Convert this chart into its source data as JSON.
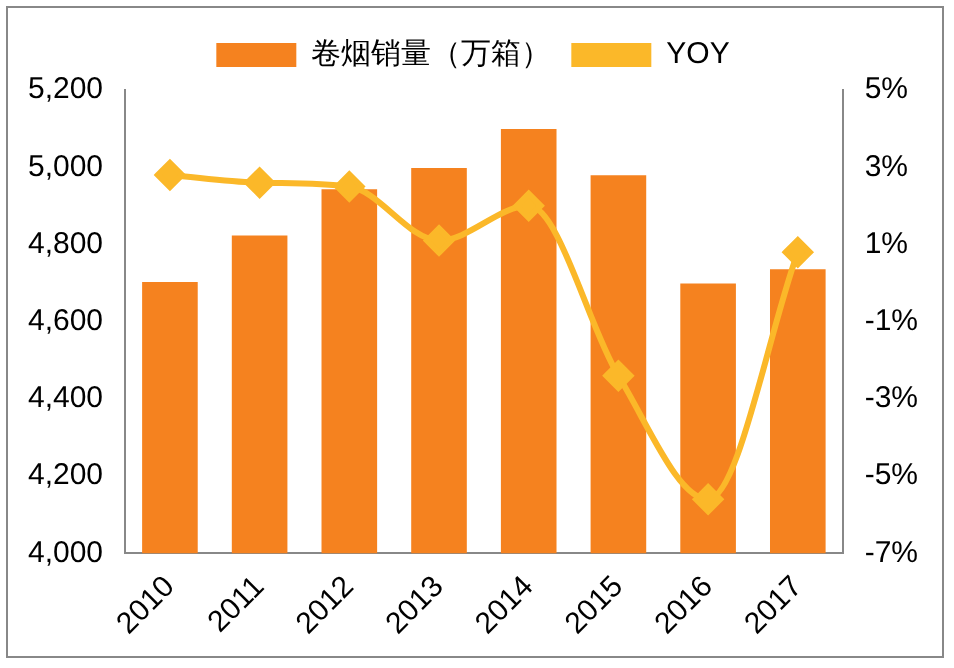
{
  "chart_data": {
    "type": "bar",
    "categories": [
      "2010",
      "2011",
      "2012",
      "2013",
      "2014",
      "2015",
      "2016",
      "2017"
    ],
    "series": [
      {
        "name": "卷烟销量（万箱）",
        "color": "#f5821f",
        "values": [
          4703,
          4823,
          4943,
          4998,
          5099,
          4979,
          4699,
          4736
        ]
      },
      {
        "name": "YOY",
        "type": "line",
        "axis": "y2",
        "color": "#fbb829",
        "values": [
          2.8,
          2.6,
          2.5,
          1.1,
          2.0,
          -2.4,
          -5.6,
          0.8
        ]
      }
    ],
    "ylim": [
      4000,
      5200
    ],
    "yticks": [
      {
        "value": 4000,
        "label": "4,000"
      },
      {
        "value": 4200,
        "label": "4,200"
      },
      {
        "value": 4400,
        "label": "4,400"
      },
      {
        "value": 4600,
        "label": "4,600"
      },
      {
        "value": 4800,
        "label": "4,800"
      },
      {
        "value": 5000,
        "label": "5,000"
      },
      {
        "value": 5200,
        "label": "5,200"
      }
    ],
    "y2lim": [
      -7,
      5
    ],
    "y2ticks": [
      {
        "value": -7,
        "label": "-7%"
      },
      {
        "value": -5,
        "label": "-5%"
      },
      {
        "value": -3,
        "label": "-3%"
      },
      {
        "value": -1,
        "label": "-1%"
      },
      {
        "value": 1,
        "label": "1%"
      },
      {
        "value": 3,
        "label": "3%"
      },
      {
        "value": 5,
        "label": "5%"
      }
    ],
    "legend": "top",
    "grid": false,
    "marker": "diamond"
  }
}
